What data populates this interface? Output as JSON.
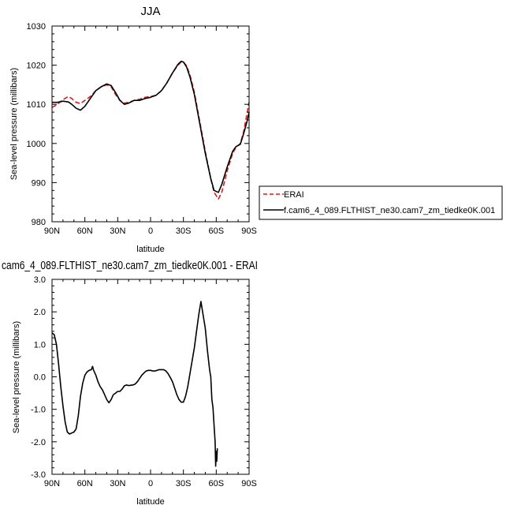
{
  "chart_data": [
    {
      "type": "line",
      "title": "JJA",
      "xlabel": "latitude",
      "ylabel": "Sea-level pressure (millibars)",
      "xlim": [
        90,
        -90
      ],
      "ylim": [
        980,
        1030
      ],
      "xticks": [
        90,
        60,
        30,
        0,
        -30,
        -60,
        -90
      ],
      "xtick_labels": [
        "90N",
        "60N",
        "30N",
        "0",
        "30S",
        "60S",
        "90S"
      ],
      "yticks": [
        980,
        990,
        1000,
        1010,
        1020,
        1030
      ],
      "ytick_labels": [
        "980",
        "990",
        "1000",
        "1010",
        "1020",
        "1030"
      ],
      "legend_position": "right",
      "series": [
        {
          "name": "ERAI",
          "color": "#e0191b",
          "dash": "dashed",
          "points": [
            [
              90,
              1009.2
            ],
            [
              85,
              1010.0
            ],
            [
              80,
              1011.2
            ],
            [
              75,
              1012.0
            ],
            [
              72,
              1011.5
            ],
            [
              68,
              1010.5
            ],
            [
              64,
              1010.2
            ],
            [
              60,
              1011.0
            ],
            [
              55,
              1012.0
            ],
            [
              50,
              1013.5
            ],
            [
              45,
              1014.5
            ],
            [
              40,
              1015.0
            ],
            [
              36,
              1014.5
            ],
            [
              32,
              1012.5
            ],
            [
              28,
              1011.0
            ],
            [
              24,
              1010.3
            ],
            [
              20,
              1010.5
            ],
            [
              15,
              1011.0
            ],
            [
              10,
              1011.3
            ],
            [
              5,
              1011.8
            ],
            [
              0,
              1012.0
            ],
            [
              -5,
              1012.3
            ],
            [
              -10,
              1013.5
            ],
            [
              -15,
              1015.5
            ],
            [
              -20,
              1018.0
            ],
            [
              -25,
              1020.0
            ],
            [
              -28,
              1020.8
            ],
            [
              -30,
              1020.8
            ],
            [
              -33,
              1019.8
            ],
            [
              -36,
              1017.5
            ],
            [
              -40,
              1013.0
            ],
            [
              -45,
              1005.5
            ],
            [
              -50,
              998.0
            ],
            [
              -55,
              991.0
            ],
            [
              -58,
              987.5
            ],
            [
              -62,
              985.8
            ],
            [
              -65,
              987.5
            ],
            [
              -70,
              993.0
            ],
            [
              -75,
              997.5
            ],
            [
              -78,
              999.0
            ],
            [
              -82,
              1000.0
            ],
            [
              -85,
              1003.0
            ],
            [
              -88,
              1007.5
            ],
            [
              -90,
              1010.5
            ]
          ]
        },
        {
          "name": "f.cam6_4_089.FLTHIST_ne30.cam7_zm_tiedke0K.001",
          "color": "#000000",
          "dash": "solid",
          "points": [
            [
              90,
              1010.5
            ],
            [
              85,
              1010.5
            ],
            [
              80,
              1010.8
            ],
            [
              75,
              1010.6
            ],
            [
              72,
              1010.0
            ],
            [
              68,
              1009.0
            ],
            [
              64,
              1008.5
            ],
            [
              60,
              1009.5
            ],
            [
              55,
              1011.5
            ],
            [
              50,
              1013.5
            ],
            [
              45,
              1014.5
            ],
            [
              40,
              1015.2
            ],
            [
              36,
              1014.8
            ],
            [
              32,
              1013.0
            ],
            [
              28,
              1011.0
            ],
            [
              24,
              1010.0
            ],
            [
              20,
              1010.3
            ],
            [
              15,
              1011.0
            ],
            [
              10,
              1011.0
            ],
            [
              5,
              1011.5
            ],
            [
              0,
              1011.8
            ],
            [
              -5,
              1012.3
            ],
            [
              -10,
              1013.5
            ],
            [
              -15,
              1015.5
            ],
            [
              -20,
              1018.0
            ],
            [
              -25,
              1020.2
            ],
            [
              -28,
              1021.0
            ],
            [
              -30,
              1020.8
            ],
            [
              -33,
              1019.5
            ],
            [
              -36,
              1017.0
            ],
            [
              -40,
              1012.5
            ],
            [
              -45,
              1005.0
            ],
            [
              -50,
              997.5
            ],
            [
              -55,
              991.0
            ],
            [
              -58,
              988.0
            ],
            [
              -62,
              987.5
            ],
            [
              -65,
              989.5
            ],
            [
              -70,
              994.0
            ],
            [
              -75,
              998.0
            ],
            [
              -78,
              999.2
            ],
            [
              -82,
              999.8
            ],
            [
              -85,
              1002.5
            ],
            [
              -88,
              1005.5
            ],
            [
              -90,
              1008.0
            ]
          ]
        }
      ]
    },
    {
      "type": "line",
      "title": "cam6_4_089.FLTHIST_ne30.cam7_zm_tiedke0K.001 - ERAI",
      "xlabel": "latitude",
      "ylabel": "Sea-level pressure (millibars)",
      "xlim": [
        90,
        -90
      ],
      "ylim": [
        -3.0,
        3.0
      ],
      "xticks": [
        90,
        60,
        30,
        0,
        -30,
        -60,
        -90
      ],
      "xtick_labels": [
        "90N",
        "60N",
        "30N",
        "0",
        "30S",
        "60S",
        "90S"
      ],
      "yticks": [
        -3,
        -2,
        -1,
        0,
        1,
        2,
        3
      ],
      "ytick_labels": [
        "-3.0",
        "-2.0",
        "-1.0",
        "0.0",
        "1.0",
        "2.0",
        "3.0"
      ],
      "series": [
        {
          "color": "#000000",
          "dash": "solid",
          "points": [
            [
              90,
              1.35
            ],
            [
              88,
              1.3
            ],
            [
              86,
              1.0
            ],
            [
              84,
              0.4
            ],
            [
              82,
              -0.3
            ],
            [
              80,
              -0.9
            ],
            [
              78,
              -1.4
            ],
            [
              76,
              -1.7
            ],
            [
              74,
              -1.76
            ],
            [
              72,
              -1.73
            ],
            [
              70,
              -1.7
            ],
            [
              68,
              -1.6
            ],
            [
              66,
              -1.2
            ],
            [
              64,
              -0.6
            ],
            [
              62,
              -0.2
            ],
            [
              60,
              0.05
            ],
            [
              58,
              0.15
            ],
            [
              56,
              0.2
            ],
            [
              54,
              0.22
            ],
            [
              53,
              0.32
            ],
            [
              52,
              0.2
            ],
            [
              50,
              0.05
            ],
            [
              48,
              -0.15
            ],
            [
              46,
              -0.3
            ],
            [
              44,
              -0.4
            ],
            [
              42,
              -0.55
            ],
            [
              40,
              -0.7
            ],
            [
              38,
              -0.8
            ],
            [
              36,
              -0.7
            ],
            [
              34,
              -0.55
            ],
            [
              32,
              -0.5
            ],
            [
              30,
              -0.45
            ],
            [
              28,
              -0.45
            ],
            [
              26,
              -0.38
            ],
            [
              24,
              -0.28
            ],
            [
              22,
              -0.25
            ],
            [
              20,
              -0.27
            ],
            [
              18,
              -0.26
            ],
            [
              16,
              -0.25
            ],
            [
              14,
              -0.22
            ],
            [
              12,
              -0.15
            ],
            [
              10,
              -0.05
            ],
            [
              8,
              0.05
            ],
            [
              6,
              0.12
            ],
            [
              4,
              0.18
            ],
            [
              2,
              0.2
            ],
            [
              0,
              0.2
            ],
            [
              -2,
              0.18
            ],
            [
              -4,
              0.18
            ],
            [
              -6,
              0.2
            ],
            [
              -8,
              0.22
            ],
            [
              -10,
              0.22
            ],
            [
              -12,
              0.22
            ],
            [
              -14,
              0.18
            ],
            [
              -16,
              0.1
            ],
            [
              -18,
              -0.02
            ],
            [
              -20,
              -0.15
            ],
            [
              -22,
              -0.35
            ],
            [
              -24,
              -0.55
            ],
            [
              -26,
              -0.7
            ],
            [
              -28,
              -0.78
            ],
            [
              -30,
              -0.78
            ],
            [
              -32,
              -0.6
            ],
            [
              -34,
              -0.3
            ],
            [
              -36,
              0.1
            ],
            [
              -38,
              0.5
            ],
            [
              -40,
              0.9
            ],
            [
              -42,
              1.4
            ],
            [
              -44,
              1.9
            ],
            [
              -46,
              2.32
            ],
            [
              -48,
              1.9
            ],
            [
              -50,
              1.5
            ],
            [
              -52,
              0.8
            ],
            [
              -54,
              0.2
            ],
            [
              -55,
              0.0
            ],
            [
              -56,
              -0.7
            ],
            [
              -57,
              -0.95
            ],
            [
              -58,
              -1.5
            ],
            [
              -59,
              -2.0
            ],
            [
              -59.5,
              -2.75
            ],
            [
              -60,
              -2.3
            ],
            [
              -60.5,
              -2.6
            ],
            [
              -61,
              -2.2
            ]
          ]
        }
      ]
    }
  ]
}
